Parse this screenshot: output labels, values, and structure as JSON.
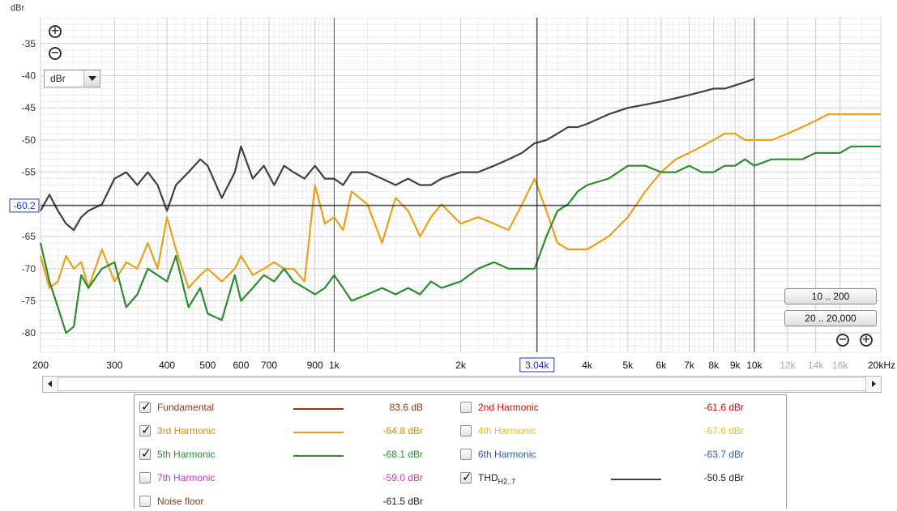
{
  "chart_data": {
    "type": "line",
    "ylabel": "dBr",
    "x_scale": "log",
    "xlim": [
      200,
      20000
    ],
    "ylim": [
      -83,
      -31
    ],
    "y_ticks": [
      "-35",
      "-40",
      "-45",
      "-50",
      "-55",
      "-60",
      "-65",
      "-70",
      "-75",
      "-80"
    ],
    "x_ticks": [
      "200",
      "300",
      "400",
      "500",
      "600",
      "700",
      "900",
      "1k",
      "2k",
      "4k",
      "5k",
      "6k",
      "7k",
      "8k",
      "9k",
      "10k",
      "12k",
      "14k",
      "16k",
      "20kHz"
    ],
    "x_tick_values": [
      200,
      300,
      400,
      500,
      600,
      700,
      900,
      1000,
      2000,
      4000,
      5000,
      6000,
      7000,
      8000,
      9000,
      10000,
      12000,
      14000,
      16000,
      20000
    ],
    "cursor": {
      "x_label": "3.04k",
      "x": 3040,
      "y_label": "-60.2",
      "y": -60.2
    },
    "series": [
      {
        "name": "THD H2..7",
        "color": "#404040",
        "x": [
          200,
          210,
          220,
          230,
          240,
          250,
          260,
          280,
          300,
          320,
          340,
          360,
          380,
          400,
          420,
          450,
          480,
          500,
          540,
          580,
          600,
          640,
          680,
          720,
          760,
          800,
          850,
          900,
          950,
          1000,
          1050,
          1100,
          1200,
          1300,
          1400,
          1500,
          1600,
          1700,
          1800,
          2000,
          2200,
          2400,
          2600,
          2800,
          3000,
          3200,
          3400,
          3600,
          3800,
          4000,
          4500,
          5000,
          5500,
          6000,
          6500,
          7000,
          7500,
          8000,
          8500,
          9000,
          9500,
          10000
        ],
        "y": [
          -61,
          -58.5,
          -61,
          -63,
          -64,
          -62,
          -61,
          -60,
          -56,
          -55,
          -57,
          -55,
          -57,
          -61,
          -57,
          -55,
          -53,
          -54,
          -59,
          -55,
          -51,
          -56,
          -54,
          -57,
          -54,
          -55,
          -56,
          -54,
          -56,
          -56,
          -57,
          -55,
          -55,
          -56,
          -57,
          -56,
          -57,
          -57,
          -56,
          -55,
          -55,
          -54,
          -53,
          -52,
          -50.5,
          -50,
          -49,
          -48,
          -48,
          -47.5,
          -46,
          -45,
          -44.5,
          -44,
          -43.5,
          -43,
          -42.5,
          -42,
          -42,
          -41.5,
          -41,
          -40.5
        ]
      },
      {
        "name": "3rd Harmonic",
        "color": "#e8a21a",
        "x": [
          200,
          210,
          220,
          230,
          240,
          250,
          260,
          280,
          300,
          320,
          340,
          360,
          380,
          400,
          420,
          450,
          480,
          500,
          540,
          580,
          600,
          640,
          680,
          720,
          760,
          800,
          850,
          900,
          950,
          1000,
          1050,
          1100,
          1200,
          1300,
          1400,
          1500,
          1600,
          1700,
          1800,
          2000,
          2200,
          2400,
          2600,
          2800,
          3000,
          3200,
          3400,
          3600,
          3800,
          4000,
          4500,
          5000,
          5500,
          6000,
          6500,
          7000,
          7500,
          8000,
          8500,
          9000,
          9500,
          10000,
          11000,
          12000,
          13000,
          14000,
          15000,
          16000,
          17000,
          18000,
          19000,
          20000
        ],
        "y": [
          -68,
          -73,
          -72,
          -68,
          -70,
          -69,
          -73,
          -67,
          -72,
          -69,
          -70,
          -66,
          -70,
          -62,
          -67,
          -73,
          -71,
          -70,
          -72,
          -70,
          -68,
          -71,
          -70,
          -69,
          -70,
          -70,
          -72,
          -57,
          -63,
          -62,
          -64,
          -58,
          -60,
          -66,
          -59,
          -61,
          -65,
          -62,
          -60,
          -63,
          -62,
          -63,
          -64,
          -60,
          -56,
          -61,
          -66,
          -67,
          -67,
          -67,
          -65,
          -62,
          -58,
          -55,
          -53,
          -52,
          -51,
          -50,
          -49,
          -49,
          -50,
          -50,
          -50,
          -49,
          -48,
          -47,
          -46,
          -46,
          -46,
          -46,
          -46,
          -46
        ]
      },
      {
        "name": "5th Harmonic",
        "color": "#2e8b2e",
        "x": [
          200,
          210,
          220,
          230,
          240,
          250,
          260,
          280,
          300,
          320,
          340,
          360,
          380,
          400,
          420,
          450,
          480,
          500,
          540,
          580,
          600,
          640,
          680,
          720,
          760,
          800,
          850,
          900,
          950,
          1000,
          1050,
          1100,
          1200,
          1300,
          1400,
          1500,
          1600,
          1700,
          1800,
          2000,
          2200,
          2400,
          2600,
          2800,
          3000,
          3200,
          3400,
          3600,
          3800,
          4000,
          4500,
          5000,
          5500,
          6000,
          6500,
          7000,
          7500,
          8000,
          8500,
          9000,
          9500,
          10000,
          11000,
          12000,
          13000,
          14000,
          15000,
          16000,
          17000,
          18000,
          19000,
          20000
        ],
        "y": [
          -66,
          -72,
          -76,
          -80,
          -79,
          -71,
          -73,
          -70,
          -69,
          -76,
          -74,
          -70,
          -71,
          -72,
          -68,
          -76,
          -73,
          -77,
          -78,
          -71,
          -75,
          -73,
          -71,
          -72,
          -70,
          -72,
          -73,
          -74,
          -73,
          -71,
          -73,
          -75,
          -74,
          -73,
          -74,
          -73,
          -74,
          -72,
          -73,
          -72,
          -70,
          -69,
          -70,
          -70,
          -70,
          -65,
          -61,
          -60,
          -58,
          -57,
          -56,
          -54,
          -54,
          -55,
          -55,
          -54,
          -55,
          -55,
          -54,
          -54,
          -53,
          -54,
          -53,
          -53,
          -53,
          -52,
          -52,
          -52,
          -51,
          -51,
          -51,
          -51
        ]
      }
    ]
  },
  "ui": {
    "zoom_in_icon": "zoom-in-icon",
    "zoom_out_icon": "zoom-out-icon",
    "unit_select": "dBr",
    "range_buttons": [
      "10 .. 200",
      "20 .. 20,000"
    ]
  },
  "legend": [
    {
      "label": "Fundamental",
      "checked": true,
      "label_color": "#8b3a1a",
      "swatch": "#8b3a1a",
      "value": "83.6 dB",
      "value_color": "#8b3a1a"
    },
    {
      "label": "2nd Harmonic",
      "checked": false,
      "label_color": "#cc1111",
      "swatch": "",
      "value": "-61.6 dBr",
      "value_color": "#cc1111"
    },
    {
      "label": "3rd Harmonic",
      "checked": true,
      "label_color": "#d98f00",
      "swatch": "#e8a21a",
      "value": "-64.8 dBr",
      "value_color": "#d98f00"
    },
    {
      "label": "4th Harmonic",
      "checked": false,
      "label_color": "#e6c021",
      "swatch": "",
      "value": "-67.6 dBr",
      "value_color": "#e6c021"
    },
    {
      "label": "5th Harmonic",
      "checked": true,
      "label_color": "#2e8b2e",
      "swatch": "#2e8b2e",
      "value": "-68.1 dBr",
      "value_color": "#2e8b2e"
    },
    {
      "label": "6th Harmonic",
      "checked": false,
      "label_color": "#2e5fa8",
      "swatch": "",
      "value": "-63.7 dBr",
      "value_color": "#2e5fa8"
    },
    {
      "label": "7th Harmonic",
      "checked": false,
      "label_color": "#c040c0",
      "swatch": "",
      "value": "-59.0 dBr",
      "value_color": "#c040c0"
    },
    {
      "label": "THD",
      "label_sub": "H2..7",
      "checked": true,
      "label_color": "#222222",
      "swatch": "#404040",
      "value": "-50.5 dBr",
      "value_color": "#222222"
    },
    {
      "label": "Noise floor",
      "checked": false,
      "label_color": "#8b3a1a",
      "swatch": "",
      "value": "-61.5 dBr",
      "value_color": "#222222"
    }
  ]
}
